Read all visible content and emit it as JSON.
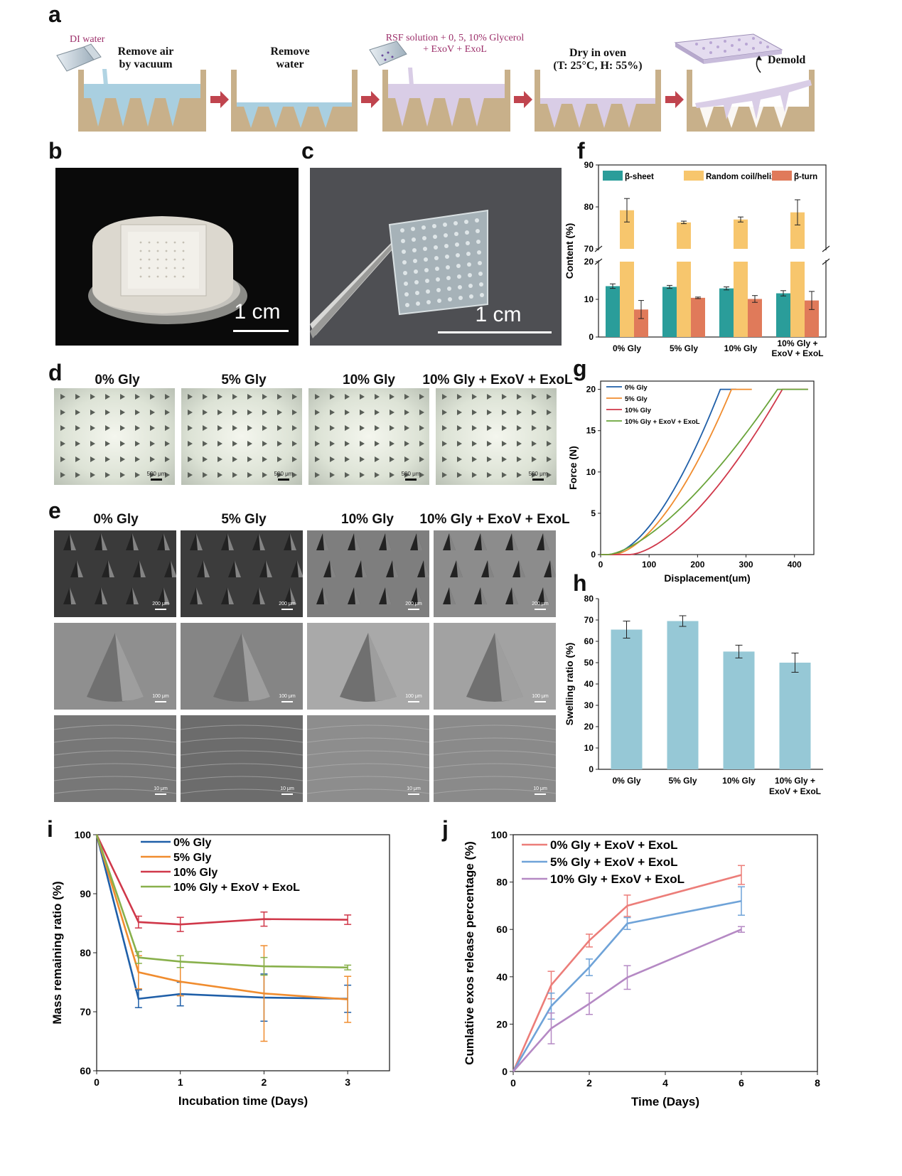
{
  "panel_labels": {
    "a": "a",
    "b": "b",
    "c": "c",
    "d": "d",
    "e": "e",
    "f": "f",
    "g": "g",
    "h": "h",
    "i": "i",
    "j": "j"
  },
  "panel_a": {
    "step1_top": "DI water",
    "step1_line1": "Remove air",
    "step1_line2": "by vacuum",
    "step2_line1": "Remove",
    "step2_line2": "water",
    "step3_line1": "RSF solution + 0, 5, 10% Glycerol",
    "step3_line2": "+ ExoV + ExoL",
    "step4_line1": "Dry in oven",
    "step4_line2": "(T: 25°C, H: 55%)",
    "step5": "Demold",
    "colors": {
      "accent_red": "#c0444e",
      "mold": "#c8b08a",
      "water": "#a9cfe0",
      "rsf": "#d9cde6"
    }
  },
  "panel_b": {
    "scale_text": "1 cm"
  },
  "panel_c": {
    "scale_text": "1 cm"
  },
  "panel_d": {
    "titles": [
      "0% Gly",
      "5% Gly",
      "10% Gly",
      "10% Gly + ExoV + ExoL"
    ],
    "scale_text": "500 μm"
  },
  "panel_e": {
    "titles": [
      "0% Gly",
      "5% Gly",
      "10% Gly",
      "10% Gly + ExoV + ExoL"
    ],
    "row_scales": [
      "200 μm",
      "100 μm",
      "10 μm"
    ]
  },
  "chart_data": [
    {
      "id": "f",
      "type": "bar",
      "categories": [
        "0% Gly",
        "5% Gly",
        "10% Gly",
        "10% Gly +\nExoV + ExoL"
      ],
      "ylabel": "Content (%)",
      "ylim_lower": [
        0,
        20
      ],
      "ylim_upper": [
        70,
        90
      ],
      "yticks": [
        0,
        10,
        20,
        70,
        80,
        90
      ],
      "series": [
        {
          "name": "β-sheet",
          "color": "#2a9d9a",
          "values": [
            13.5,
            13.3,
            12.9,
            11.6
          ],
          "errors": [
            0.6,
            0.4,
            0.4,
            0.7
          ]
        },
        {
          "name": "Random coil/helix",
          "color": "#f7c66d",
          "values": [
            79.2,
            76.3,
            77.0,
            78.7
          ],
          "errors": [
            2.8,
            0.3,
            0.6,
            3.0
          ]
        },
        {
          "name": "β-turn",
          "color": "#e07a5a",
          "values": [
            7.3,
            10.4,
            10.1,
            9.7
          ],
          "errors": [
            2.4,
            0.2,
            0.9,
            2.4
          ]
        }
      ],
      "legend": "top"
    },
    {
      "id": "g",
      "type": "line",
      "xlabel": "Displacement(um)",
      "ylabel": "Force (N)",
      "xlim": [
        0,
        440
      ],
      "ylim": [
        0,
        21
      ],
      "xticks": [
        0,
        100,
        200,
        300,
        400
      ],
      "yticks": [
        0,
        5,
        10,
        15,
        20
      ],
      "series": [
        {
          "name": "0% Gly",
          "color": "#1f5fa8",
          "onset": 20,
          "reach": 247,
          "plateau_end": 280,
          "exp": 1.7
        },
        {
          "name": "5% Gly",
          "color": "#f08c2e",
          "onset": 25,
          "reach": 270,
          "plateau_end": 312,
          "exp": 1.7
        },
        {
          "name": "10% Gly",
          "color": "#d0384a",
          "onset": 60,
          "reach": 375,
          "plateau_end": 428,
          "exp": 1.6
        },
        {
          "name": "10% Gly + ExoV + ExoL",
          "color": "#6aa43a",
          "onset": 15,
          "reach": 365,
          "plateau_end": 428,
          "exp": 1.5
        }
      ],
      "legend": "top-left"
    },
    {
      "id": "h",
      "type": "bar",
      "categories": [
        "0% Gly",
        "5% Gly",
        "10% Gly",
        "10% Gly +\nExoV + ExoL"
      ],
      "ylabel": "Swelling ratio (%)",
      "ylim": [
        0,
        80
      ],
      "yticks": [
        0,
        10,
        20,
        30,
        40,
        50,
        60,
        70,
        80
      ],
      "values": [
        65.5,
        69.5,
        55.2,
        50.0
      ],
      "errors": [
        4.0,
        2.5,
        3.0,
        4.5
      ],
      "color": "#96c8d6"
    },
    {
      "id": "i",
      "type": "line",
      "xlabel": "Incubation time (Days)",
      "ylabel": "Mass remaining ratio (%)",
      "xlim": [
        0,
        3.5
      ],
      "ylim": [
        60,
        100
      ],
      "xticks": [
        0,
        1,
        2,
        3
      ],
      "yticks": [
        60,
        70,
        80,
        90,
        100
      ],
      "x": [
        0,
        0.5,
        1,
        2,
        3
      ],
      "series": [
        {
          "name": "0% Gly",
          "color": "#1f5fa8",
          "values": [
            100,
            72.2,
            73.0,
            72.4,
            72.2
          ],
          "errors": [
            0,
            1.5,
            2.0,
            4.0,
            2.3
          ]
        },
        {
          "name": "5% Gly",
          "color": "#f08c2e",
          "values": [
            100,
            76.7,
            75.1,
            73.1,
            72.1
          ],
          "errors": [
            0,
            2.8,
            2.4,
            8.1,
            3.9
          ]
        },
        {
          "name": "10% Gly",
          "color": "#d0384a",
          "values": [
            100,
            85.2,
            84.8,
            85.7,
            85.6
          ],
          "errors": [
            0,
            1.0,
            1.2,
            1.2,
            0.8
          ]
        },
        {
          "name": "10% Gly + ExoV + ExoL",
          "color": "#88b04b",
          "values": [
            100,
            79.2,
            78.5,
            77.7,
            77.5
          ],
          "errors": [
            0,
            1.0,
            1.0,
            1.5,
            0.4
          ]
        }
      ],
      "legend": "top-left"
    },
    {
      "id": "j",
      "type": "line",
      "xlabel": "Time (Days)",
      "ylabel": "Cumlative exos release percentage (%)",
      "xlim": [
        0,
        8
      ],
      "ylim": [
        0,
        100
      ],
      "xticks": [
        0,
        2,
        4,
        6,
        8
      ],
      "yticks": [
        0,
        20,
        40,
        60,
        80,
        100
      ],
      "x": [
        0,
        1,
        2,
        3,
        6
      ],
      "series": [
        {
          "name": "0% Gly + ExoV + ExoL",
          "color": "#ec7d79",
          "values": [
            0,
            36.5,
            55.3,
            70.0,
            83.0
          ],
          "errors": [
            0,
            5.8,
            2.7,
            4.5,
            4.0
          ]
        },
        {
          "name": "5% Gly + ExoV + ExoL",
          "color": "#6fa3d8",
          "values": [
            0,
            27.6,
            44.0,
            62.5,
            72.0
          ],
          "errors": [
            0,
            5.5,
            3.5,
            2.5,
            6.0
          ]
        },
        {
          "name": "10% Gly + ExoV + ExoL",
          "color": "#b589c4",
          "values": [
            0,
            18.2,
            28.6,
            39.7,
            60.0
          ],
          "errors": [
            0,
            6.5,
            4.5,
            5.0,
            1.2
          ]
        }
      ],
      "legend": "top-left"
    }
  ]
}
